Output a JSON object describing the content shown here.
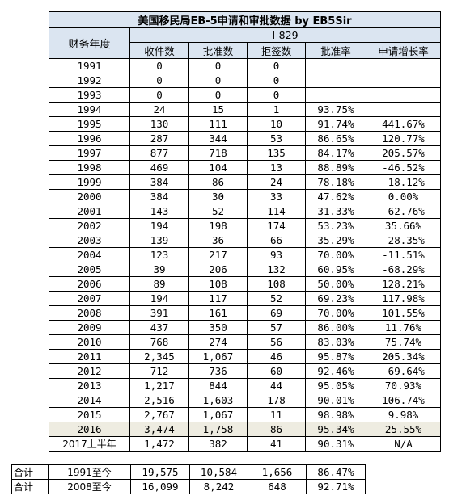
{
  "title": "美国移民局EB-5申请和审批数据 by EB5Sir",
  "year_header": "财务年度",
  "form_header": "I-829",
  "columns": [
    "收件数",
    "批准数",
    "拒签数",
    "批准率",
    "申请增长率"
  ],
  "rows": [
    {
      "year": "1991",
      "received": "0",
      "approved": "0",
      "denied": "0",
      "approval_rate": "",
      "growth": ""
    },
    {
      "year": "1992",
      "received": "0",
      "approved": "0",
      "denied": "0",
      "approval_rate": "",
      "growth": ""
    },
    {
      "year": "1993",
      "received": "0",
      "approved": "0",
      "denied": "0",
      "approval_rate": "",
      "growth": ""
    },
    {
      "year": "1994",
      "received": "24",
      "approved": "15",
      "denied": "1",
      "approval_rate": "93.75%",
      "growth": ""
    },
    {
      "year": "1995",
      "received": "130",
      "approved": "111",
      "denied": "10",
      "approval_rate": "91.74%",
      "growth": "441.67%"
    },
    {
      "year": "1996",
      "received": "287",
      "approved": "344",
      "denied": "53",
      "approval_rate": "86.65%",
      "growth": "120.77%"
    },
    {
      "year": "1997",
      "received": "877",
      "approved": "718",
      "denied": "135",
      "approval_rate": "84.17%",
      "growth": "205.57%"
    },
    {
      "year": "1998",
      "received": "469",
      "approved": "104",
      "denied": "13",
      "approval_rate": "88.89%",
      "growth": "-46.52%"
    },
    {
      "year": "1999",
      "received": "384",
      "approved": "86",
      "denied": "24",
      "approval_rate": "78.18%",
      "growth": "-18.12%"
    },
    {
      "year": "2000",
      "received": "384",
      "approved": "30",
      "denied": "33",
      "approval_rate": "47.62%",
      "growth": "0.00%"
    },
    {
      "year": "2001",
      "received": "143",
      "approved": "52",
      "denied": "114",
      "approval_rate": "31.33%",
      "growth": "-62.76%"
    },
    {
      "year": "2002",
      "received": "194",
      "approved": "198",
      "denied": "174",
      "approval_rate": "53.23%",
      "growth": "35.66%"
    },
    {
      "year": "2003",
      "received": "139",
      "approved": "36",
      "denied": "66",
      "approval_rate": "35.29%",
      "growth": "-28.35%"
    },
    {
      "year": "2004",
      "received": "123",
      "approved": "217",
      "denied": "93",
      "approval_rate": "70.00%",
      "growth": "-11.51%"
    },
    {
      "year": "2005",
      "received": "39",
      "approved": "206",
      "denied": "132",
      "approval_rate": "60.95%",
      "growth": "-68.29%"
    },
    {
      "year": "2006",
      "received": "89",
      "approved": "108",
      "denied": "108",
      "approval_rate": "50.00%",
      "growth": "128.21%"
    },
    {
      "year": "2007",
      "received": "194",
      "approved": "117",
      "denied": "52",
      "approval_rate": "69.23%",
      "growth": "117.98%"
    },
    {
      "year": "2008",
      "received": "391",
      "approved": "161",
      "denied": "69",
      "approval_rate": "70.00%",
      "growth": "101.55%"
    },
    {
      "year": "2009",
      "received": "437",
      "approved": "350",
      "denied": "57",
      "approval_rate": "86.00%",
      "growth": "11.76%"
    },
    {
      "year": "2010",
      "received": "768",
      "approved": "274",
      "denied": "56",
      "approval_rate": "83.03%",
      "growth": "75.74%"
    },
    {
      "year": "2011",
      "received": "2,345",
      "approved": "1,067",
      "denied": "46",
      "approval_rate": "95.87%",
      "growth": "205.34%"
    },
    {
      "year": "2012",
      "received": "712",
      "approved": "736",
      "denied": "60",
      "approval_rate": "92.46%",
      "growth": "-69.64%"
    },
    {
      "year": "2013",
      "received": "1,217",
      "approved": "844",
      "denied": "44",
      "approval_rate": "95.05%",
      "growth": "70.93%"
    },
    {
      "year": "2014",
      "received": "2,516",
      "approved": "1,603",
      "denied": "178",
      "approval_rate": "90.01%",
      "growth": "106.74%"
    },
    {
      "year": "2015",
      "received": "2,767",
      "approved": "1,067",
      "denied": "11",
      "approval_rate": "98.98%",
      "growth": "9.98%"
    },
    {
      "year": "2016",
      "received": "3,474",
      "approved": "1,758",
      "denied": "86",
      "approval_rate": "95.34%",
      "growth": "25.55%",
      "highlight": true
    },
    {
      "year": "2017上半年",
      "received": "1,472",
      "approved": "382",
      "denied": "41",
      "approval_rate": "90.31%",
      "growth": "N/A"
    }
  ],
  "summary": [
    {
      "label": "合计",
      "period": "1991至今",
      "received": "19,575",
      "approved": "10,584",
      "denied": "1,656",
      "approval_rate": "86.47%"
    },
    {
      "label": "合计",
      "period": "2008至今",
      "received": "16,099",
      "approved": "8,242",
      "denied": "648",
      "approval_rate": "92.71%"
    }
  ],
  "colors": {
    "header_bg": "#dbe5f1",
    "highlight_bg": "#eeece1",
    "border": "#000000"
  }
}
